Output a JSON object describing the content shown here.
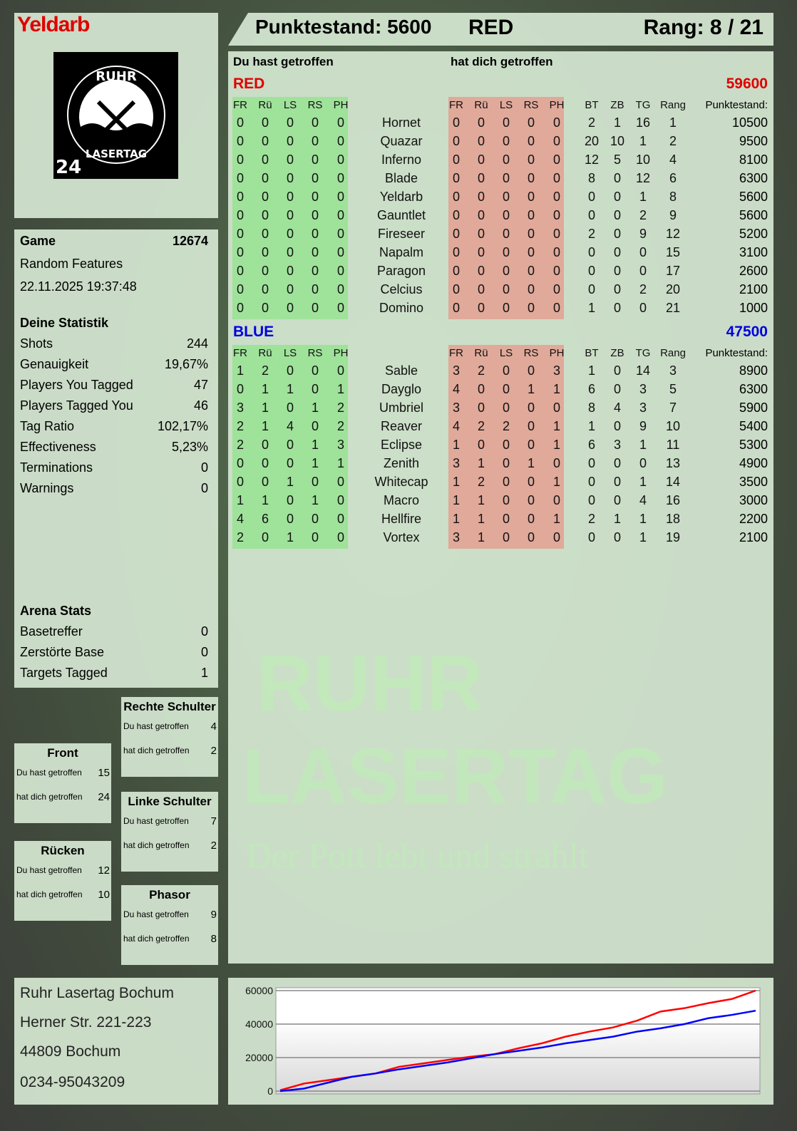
{
  "player": {
    "name": "Yeldarb",
    "logo_text": "RUHR LASERTAG 24"
  },
  "header": {
    "score_label": "Punktestand: 5600",
    "team": "RED",
    "rank_label": "Rang: 8 / 21"
  },
  "columns": {
    "you_hit": "Du hast getroffen",
    "hit_you": "hat dich getroffen",
    "zones": [
      "FR",
      "Rü",
      "LS",
      "RS",
      "PH"
    ],
    "stats": [
      "BT",
      "ZB",
      "TG",
      "Rang"
    ],
    "score": "Punktestand:"
  },
  "teams": [
    {
      "name": "RED",
      "total": "59600",
      "color": "#e00000",
      "rows": [
        {
          "you": [
            0,
            0,
            0,
            0,
            0
          ],
          "name": "Hornet",
          "them": [
            0,
            0,
            0,
            0,
            0
          ],
          "bt": 2,
          "zb": 1,
          "tg": 16,
          "rang": 1,
          "score": 10500
        },
        {
          "you": [
            0,
            0,
            0,
            0,
            0
          ],
          "name": "Quazar",
          "them": [
            0,
            0,
            0,
            0,
            0
          ],
          "bt": 20,
          "zb": 10,
          "tg": 1,
          "rang": 2,
          "score": 9500
        },
        {
          "you": [
            0,
            0,
            0,
            0,
            0
          ],
          "name": "Inferno",
          "them": [
            0,
            0,
            0,
            0,
            0
          ],
          "bt": 12,
          "zb": 5,
          "tg": 10,
          "rang": 4,
          "score": 8100
        },
        {
          "you": [
            0,
            0,
            0,
            0,
            0
          ],
          "name": "Blade",
          "them": [
            0,
            0,
            0,
            0,
            0
          ],
          "bt": 8,
          "zb": 0,
          "tg": 12,
          "rang": 6,
          "score": 6300
        },
        {
          "you": [
            0,
            0,
            0,
            0,
            0
          ],
          "name": "Yeldarb",
          "them": [
            0,
            0,
            0,
            0,
            0
          ],
          "bt": 0,
          "zb": 0,
          "tg": 1,
          "rang": 8,
          "score": 5600
        },
        {
          "you": [
            0,
            0,
            0,
            0,
            0
          ],
          "name": "Gauntlet",
          "them": [
            0,
            0,
            0,
            0,
            0
          ],
          "bt": 0,
          "zb": 0,
          "tg": 2,
          "rang": 9,
          "score": 5600
        },
        {
          "you": [
            0,
            0,
            0,
            0,
            0
          ],
          "name": "Fireseer",
          "them": [
            0,
            0,
            0,
            0,
            0
          ],
          "bt": 2,
          "zb": 0,
          "tg": 9,
          "rang": 12,
          "score": 5200
        },
        {
          "you": [
            0,
            0,
            0,
            0,
            0
          ],
          "name": "Napalm",
          "them": [
            0,
            0,
            0,
            0,
            0
          ],
          "bt": 0,
          "zb": 0,
          "tg": 0,
          "rang": 15,
          "score": 3100
        },
        {
          "you": [
            0,
            0,
            0,
            0,
            0
          ],
          "name": "Paragon",
          "them": [
            0,
            0,
            0,
            0,
            0
          ],
          "bt": 0,
          "zb": 0,
          "tg": 0,
          "rang": 17,
          "score": 2600
        },
        {
          "you": [
            0,
            0,
            0,
            0,
            0
          ],
          "name": "Celcius",
          "them": [
            0,
            0,
            0,
            0,
            0
          ],
          "bt": 0,
          "zb": 0,
          "tg": 2,
          "rang": 20,
          "score": 2100
        },
        {
          "you": [
            0,
            0,
            0,
            0,
            0
          ],
          "name": "Domino",
          "them": [
            0,
            0,
            0,
            0,
            0
          ],
          "bt": 1,
          "zb": 0,
          "tg": 0,
          "rang": 21,
          "score": 1000
        }
      ]
    },
    {
      "name": "BLUE",
      "total": "47500",
      "color": "#0000e0",
      "rows": [
        {
          "you": [
            1,
            2,
            0,
            0,
            0
          ],
          "name": "Sable",
          "them": [
            3,
            2,
            0,
            0,
            3
          ],
          "bt": 1,
          "zb": 0,
          "tg": 14,
          "rang": 3,
          "score": 8900
        },
        {
          "you": [
            0,
            1,
            1,
            0,
            1
          ],
          "name": "Dayglo",
          "them": [
            4,
            0,
            0,
            1,
            1
          ],
          "bt": 6,
          "zb": 0,
          "tg": 3,
          "rang": 5,
          "score": 6300
        },
        {
          "you": [
            3,
            1,
            0,
            1,
            2
          ],
          "name": "Umbriel",
          "them": [
            3,
            0,
            0,
            0,
            0
          ],
          "bt": 8,
          "zb": 4,
          "tg": 3,
          "rang": 7,
          "score": 5900
        },
        {
          "you": [
            2,
            1,
            4,
            0,
            2
          ],
          "name": "Reaver",
          "them": [
            4,
            2,
            2,
            0,
            1
          ],
          "bt": 1,
          "zb": 0,
          "tg": 9,
          "rang": 10,
          "score": 5400
        },
        {
          "you": [
            2,
            0,
            0,
            1,
            3
          ],
          "name": "Eclipse",
          "them": [
            1,
            0,
            0,
            0,
            1
          ],
          "bt": 6,
          "zb": 3,
          "tg": 1,
          "rang": 11,
          "score": 5300
        },
        {
          "you": [
            0,
            0,
            0,
            1,
            1
          ],
          "name": "Zenith",
          "them": [
            3,
            1,
            0,
            1,
            0
          ],
          "bt": 0,
          "zb": 0,
          "tg": 0,
          "rang": 13,
          "score": 4900
        },
        {
          "you": [
            0,
            0,
            1,
            0,
            0
          ],
          "name": "Whitecap",
          "them": [
            1,
            2,
            0,
            0,
            1
          ],
          "bt": 0,
          "zb": 0,
          "tg": 1,
          "rang": 14,
          "score": 3500
        },
        {
          "you": [
            1,
            1,
            0,
            1,
            0
          ],
          "name": "Macro",
          "them": [
            1,
            1,
            0,
            0,
            0
          ],
          "bt": 0,
          "zb": 0,
          "tg": 4,
          "rang": 16,
          "score": 3000
        },
        {
          "you": [
            4,
            6,
            0,
            0,
            0
          ],
          "name": "Hellfire",
          "them": [
            1,
            1,
            0,
            0,
            1
          ],
          "bt": 2,
          "zb": 1,
          "tg": 1,
          "rang": 18,
          "score": 2200
        },
        {
          "you": [
            2,
            0,
            1,
            0,
            0
          ],
          "name": "Vortex",
          "them": [
            3,
            1,
            0,
            0,
            0
          ],
          "bt": 0,
          "zb": 0,
          "tg": 1,
          "rang": 19,
          "score": 2100
        }
      ]
    }
  ],
  "game": {
    "label": "Game",
    "id": "12674",
    "mode": "Random Features",
    "datetime": "22.11.2025 19:37:48"
  },
  "stats": {
    "title": "Deine Statistik",
    "items": [
      {
        "label": "Shots",
        "value": "244"
      },
      {
        "label": "Genauigkeit",
        "value": "19,67%"
      },
      {
        "label": "Players You Tagged",
        "value": "47"
      },
      {
        "label": "Players Tagged You",
        "value": "46"
      },
      {
        "label": "Tag Ratio",
        "value": "102,17%"
      },
      {
        "label": "Effectiveness",
        "value": "5,23%"
      },
      {
        "label": "Terminations",
        "value": "0"
      },
      {
        "label": "Warnings",
        "value": "0"
      }
    ]
  },
  "arena": {
    "title": "Arena Stats",
    "items": [
      {
        "label": "Basetreffer",
        "value": "0"
      },
      {
        "label": "Zerstörte Base",
        "value": "0"
      },
      {
        "label": "Targets Tagged",
        "value": "1"
      }
    ]
  },
  "zones": {
    "you_label": "Du hast getroffen",
    "them_label": "hat dich getroffen",
    "items": [
      {
        "title": "Rechte Schulter",
        "you": "4",
        "them": "2"
      },
      {
        "title": "Front",
        "you": "15",
        "them": "24"
      },
      {
        "title": "Linke Schulter",
        "you": "7",
        "them": "2"
      },
      {
        "title": "Rücken",
        "you": "12",
        "them": "10"
      },
      {
        "title": "Phasor",
        "you": "9",
        "them": "8"
      }
    ]
  },
  "footer": {
    "lines": [
      "Ruhr Lasertag Bochum",
      "Herner Str. 221-223",
      "44809 Bochum",
      "0234-95043209"
    ]
  },
  "watermark": {
    "line1": "RUHR",
    "line2": "LASERTAG",
    "slogan": "Der Pott lebt und strahlt"
  },
  "chart_data": {
    "type": "line",
    "ylim": [
      0,
      60000
    ],
    "yticks": [
      "0",
      "20000",
      "40000",
      "60000"
    ],
    "grid": true,
    "x": [
      0,
      1,
      2,
      3,
      4,
      5,
      6,
      7,
      8,
      9,
      10,
      11,
      12,
      13,
      14,
      15,
      16,
      17,
      18,
      19,
      20
    ],
    "series": [
      {
        "color": "#ff0000",
        "values": [
          500,
          4500,
          6500,
          8500,
          10500,
          14500,
          16500,
          18500,
          20500,
          22000,
          25500,
          28500,
          32500,
          35500,
          38000,
          42000,
          47500,
          49500,
          52500,
          55000,
          60000
        ]
      },
      {
        "color": "#0000ff",
        "values": [
          0,
          1500,
          5000,
          8500,
          10500,
          13000,
          15000,
          17000,
          19500,
          22000,
          24000,
          26000,
          28500,
          30500,
          32500,
          35500,
          37500,
          40000,
          43500,
          45500,
          48000
        ]
      }
    ]
  }
}
